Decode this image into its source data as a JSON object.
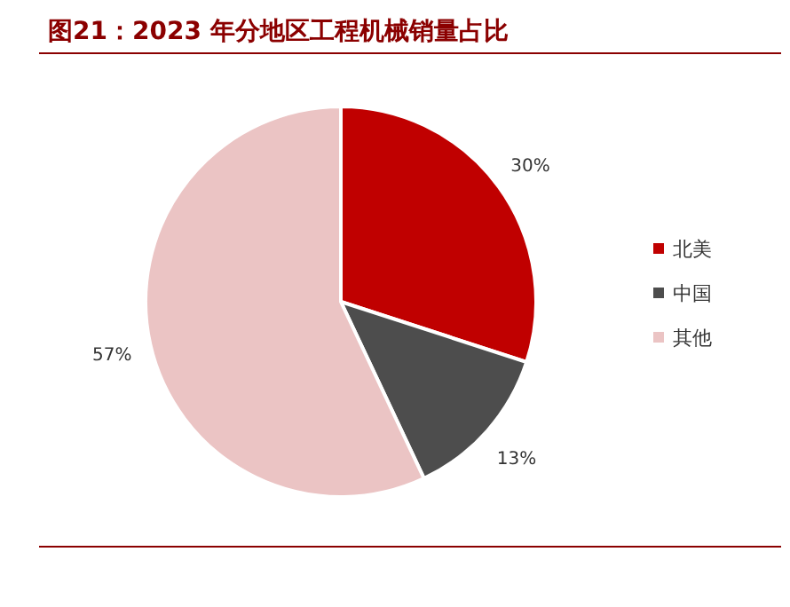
{
  "chart_data": {
    "type": "pie",
    "title": "图21：2023 年分地区工程机械销量占比",
    "categories": [
      "北美",
      "中国",
      "其他"
    ],
    "values": [
      30,
      13,
      57
    ],
    "colors": [
      "#c00000",
      "#4d4d4d",
      "#ebc4c4"
    ],
    "value_labels": [
      "30%",
      "13%",
      "57%"
    ],
    "legend": "right"
  }
}
